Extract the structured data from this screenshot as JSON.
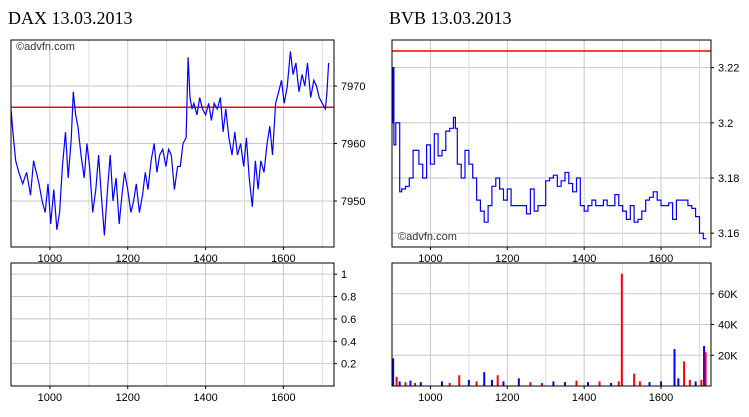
{
  "chart_data": [
    {
      "type": "line",
      "title": "DAX 13.03.2013",
      "watermark": "©advfn.com",
      "xlim": [
        900,
        1730
      ],
      "ylim": [
        7942,
        7978
      ],
      "xticks": [
        1000,
        1200,
        1400,
        1600
      ],
      "xtick_labels": [
        "1000",
        "1200",
        "1400",
        "1600"
      ],
      "yticks": [
        7950,
        7960,
        7970
      ],
      "ytick_labels": [
        "7950",
        "7960",
        "7970"
      ],
      "grid": true,
      "reference_line": {
        "value": 7966.3,
        "color": "#ff0000"
      },
      "series": [
        {
          "color": "#0000ff",
          "x": [
            900,
            905,
            912,
            920,
            930,
            940,
            950,
            958,
            965,
            972,
            980,
            988,
            995,
            1002,
            1010,
            1018,
            1025,
            1032,
            1040,
            1047,
            1055,
            1060,
            1066,
            1072,
            1080,
            1088,
            1095,
            1102,
            1110,
            1118,
            1125,
            1132,
            1140,
            1148,
            1155,
            1162,
            1170,
            1178,
            1185,
            1192,
            1200,
            1208,
            1215,
            1222,
            1230,
            1238,
            1245,
            1252,
            1260,
            1268,
            1275,
            1282,
            1290,
            1298,
            1305,
            1312,
            1320,
            1328,
            1335,
            1342,
            1350,
            1355,
            1360,
            1365,
            1370,
            1378,
            1385,
            1392,
            1400,
            1408,
            1415,
            1422,
            1430,
            1438,
            1445,
            1452,
            1460,
            1468,
            1475,
            1482,
            1490,
            1498,
            1505,
            1512,
            1520,
            1528,
            1535,
            1542,
            1550,
            1558,
            1565,
            1572,
            1580,
            1588,
            1595,
            1602,
            1610,
            1618,
            1625,
            1632,
            1640,
            1648,
            1655,
            1662,
            1670,
            1678,
            1685,
            1692,
            1700,
            1708,
            1712,
            1716
          ],
          "y": [
            7966,
            7962,
            7957,
            7955,
            7953,
            7955,
            7951,
            7957,
            7955,
            7953,
            7950,
            7948,
            7953,
            7946,
            7952,
            7945,
            7948,
            7956,
            7962,
            7954,
            7961,
            7969,
            7965,
            7963,
            7958,
            7954,
            7960,
            7956,
            7948,
            7952,
            7958,
            7951,
            7944,
            7952,
            7958,
            7950,
            7954,
            7946,
            7951,
            7955,
            7952,
            7948,
            7950,
            7953,
            7948,
            7951,
            7955,
            7952,
            7957,
            7960,
            7955,
            7958,
            7959,
            7956,
            7959,
            7958,
            7952,
            7956,
            7956,
            7960,
            7961,
            7975,
            7968,
            7966,
            7967,
            7965,
            7968,
            7966,
            7965,
            7967,
            7964,
            7967,
            7966,
            7968,
            7962,
            7966,
            7961,
            7958,
            7962,
            7958,
            7960,
            7956,
            7961,
            7954,
            7949,
            7957,
            7952,
            7957,
            7955,
            7960,
            7963,
            7958,
            7967,
            7969,
            7971,
            7967,
            7970,
            7976,
            7972,
            7974,
            7969,
            7972,
            7970,
            7974,
            7968,
            7971,
            7970,
            7968,
            7967,
            7966,
            7969,
            7974
          ]
        }
      ]
    },
    {
      "type": "line",
      "title": "",
      "xlim": [
        900,
        1730
      ],
      "ylim": [
        0,
        1.1
      ],
      "xticks": [
        1000,
        1200,
        1400,
        1600
      ],
      "xtick_labels": [
        "1000",
        "1200",
        "1400",
        "1600"
      ],
      "yticks": [
        0.2,
        0.4,
        0.6,
        0.8,
        1
      ],
      "ytick_labels": [
        "0.2",
        "0.4",
        "0.6",
        "0.8",
        "1"
      ],
      "grid": true,
      "series": []
    },
    {
      "type": "line",
      "title": "BVB 13.03.2013",
      "watermark": "©advfn.com",
      "xlim": [
        900,
        1730
      ],
      "ylim": [
        3.155,
        3.23
      ],
      "xticks": [
        1000,
        1200,
        1400,
        1600
      ],
      "xtick_labels": [
        "1000",
        "1200",
        "1400",
        "1600"
      ],
      "yticks": [
        3.16,
        3.18,
        3.2,
        3.22
      ],
      "ytick_labels": [
        "3.16",
        "3.18",
        "3.2",
        "3.22"
      ],
      "grid": true,
      "reference_line": {
        "value": 3.226,
        "color": "#ff0000"
      },
      "series": [
        {
          "color": "#0000ff",
          "step": true,
          "x": [
            900,
            902,
            905,
            910,
            915,
            920,
            925,
            935,
            945,
            955,
            970,
            980,
            990,
            1000,
            1010,
            1020,
            1030,
            1040,
            1050,
            1060,
            1065,
            1070,
            1080,
            1090,
            1100,
            1110,
            1120,
            1130,
            1140,
            1150,
            1160,
            1170,
            1180,
            1190,
            1200,
            1210,
            1220,
            1230,
            1240,
            1250,
            1260,
            1270,
            1280,
            1290,
            1300,
            1310,
            1320,
            1330,
            1340,
            1350,
            1360,
            1370,
            1380,
            1390,
            1400,
            1410,
            1420,
            1430,
            1440,
            1450,
            1460,
            1470,
            1480,
            1490,
            1500,
            1510,
            1520,
            1530,
            1540,
            1550,
            1560,
            1570,
            1580,
            1590,
            1600,
            1610,
            1620,
            1630,
            1640,
            1650,
            1660,
            1670,
            1680,
            1690,
            1700,
            1710,
            1718
          ],
          "y": [
            3.2,
            3.22,
            3.192,
            3.2,
            3.2,
            3.175,
            3.176,
            3.177,
            3.18,
            3.19,
            3.185,
            3.18,
            3.192,
            3.185,
            3.196,
            3.188,
            3.19,
            3.197,
            3.198,
            3.202,
            3.198,
            3.185,
            3.18,
            3.19,
            3.185,
            3.18,
            3.172,
            3.168,
            3.164,
            3.17,
            3.177,
            3.18,
            3.176,
            3.172,
            3.176,
            3.17,
            3.17,
            3.17,
            3.17,
            3.167,
            3.176,
            3.168,
            3.17,
            3.17,
            3.179,
            3.18,
            3.181,
            3.177,
            3.179,
            3.182,
            3.178,
            3.175,
            3.18,
            3.17,
            3.168,
            3.17,
            3.172,
            3.17,
            3.17,
            3.172,
            3.17,
            3.17,
            3.174,
            3.17,
            3.168,
            3.165,
            3.17,
            3.164,
            3.165,
            3.168,
            3.172,
            3.173,
            3.175,
            3.172,
            3.17,
            3.17,
            3.171,
            3.165,
            3.172,
            3.172,
            3.172,
            3.17,
            3.169,
            3.166,
            3.16,
            3.158,
            3.158
          ]
        }
      ]
    },
    {
      "type": "bar",
      "title": "",
      "xlim": [
        900,
        1730
      ],
      "ylim": [
        0,
        80000
      ],
      "xticks": [
        1000,
        1200,
        1400,
        1600
      ],
      "xtick_labels": [
        "1000",
        "1200",
        "1400",
        "1600"
      ],
      "yticks": [
        20000,
        40000,
        60000
      ],
      "ytick_labels": [
        "20K",
        "40K",
        "60K"
      ],
      "grid": true,
      "bars": [
        {
          "x": 903,
          "value": 18000,
          "color": "#0000ff"
        },
        {
          "x": 912,
          "value": 6000,
          "color": "#ff0000"
        },
        {
          "x": 920,
          "value": 3000,
          "color": "#0000ff"
        },
        {
          "x": 935,
          "value": 2500,
          "color": "#ff0000"
        },
        {
          "x": 948,
          "value": 3500,
          "color": "#0000ff"
        },
        {
          "x": 960,
          "value": 2000,
          "color": "#ff0000"
        },
        {
          "x": 975,
          "value": 2500,
          "color": "#0000ff"
        },
        {
          "x": 1030,
          "value": 3000,
          "color": "#0000ff"
        },
        {
          "x": 1050,
          "value": 2000,
          "color": "#ff0000"
        },
        {
          "x": 1075,
          "value": 7000,
          "color": "#ff0000"
        },
        {
          "x": 1100,
          "value": 4000,
          "color": "#0000ff"
        },
        {
          "x": 1120,
          "value": 3000,
          "color": "#ff0000"
        },
        {
          "x": 1140,
          "value": 9000,
          "color": "#0000ff"
        },
        {
          "x": 1160,
          "value": 4000,
          "color": "#0000ff"
        },
        {
          "x": 1175,
          "value": 7000,
          "color": "#ff0000"
        },
        {
          "x": 1190,
          "value": 3000,
          "color": "#0000ff"
        },
        {
          "x": 1230,
          "value": 5000,
          "color": "#0000ff"
        },
        {
          "x": 1260,
          "value": 2500,
          "color": "#ff0000"
        },
        {
          "x": 1290,
          "value": 2000,
          "color": "#ff0000"
        },
        {
          "x": 1320,
          "value": 3000,
          "color": "#0000ff"
        },
        {
          "x": 1350,
          "value": 2500,
          "color": "#0000ff"
        },
        {
          "x": 1380,
          "value": 3500,
          "color": "#ff0000"
        },
        {
          "x": 1410,
          "value": 2500,
          "color": "#0000ff"
        },
        {
          "x": 1440,
          "value": 3000,
          "color": "#ff0000"
        },
        {
          "x": 1470,
          "value": 2000,
          "color": "#0000ff"
        },
        {
          "x": 1490,
          "value": 3000,
          "color": "#ff0000"
        },
        {
          "x": 1498,
          "value": 73000,
          "color": "#ff0000"
        },
        {
          "x": 1530,
          "value": 8000,
          "color": "#ff0000"
        },
        {
          "x": 1545,
          "value": 3000,
          "color": "#ff0000"
        },
        {
          "x": 1570,
          "value": 2500,
          "color": "#0000ff"
        },
        {
          "x": 1600,
          "value": 3000,
          "color": "#0000ff"
        },
        {
          "x": 1635,
          "value": 24000,
          "color": "#0000ff"
        },
        {
          "x": 1645,
          "value": 5000,
          "color": "#0000ff"
        },
        {
          "x": 1660,
          "value": 16000,
          "color": "#ff0000"
        },
        {
          "x": 1675,
          "value": 4000,
          "color": "#ff0000"
        },
        {
          "x": 1690,
          "value": 3000,
          "color": "#0000ff"
        },
        {
          "x": 1705,
          "value": 4000,
          "color": "#ff0000"
        },
        {
          "x": 1712,
          "value": 26000,
          "color": "#0000ff"
        },
        {
          "x": 1716,
          "value": 22000,
          "color": "#ff0000"
        }
      ]
    }
  ]
}
